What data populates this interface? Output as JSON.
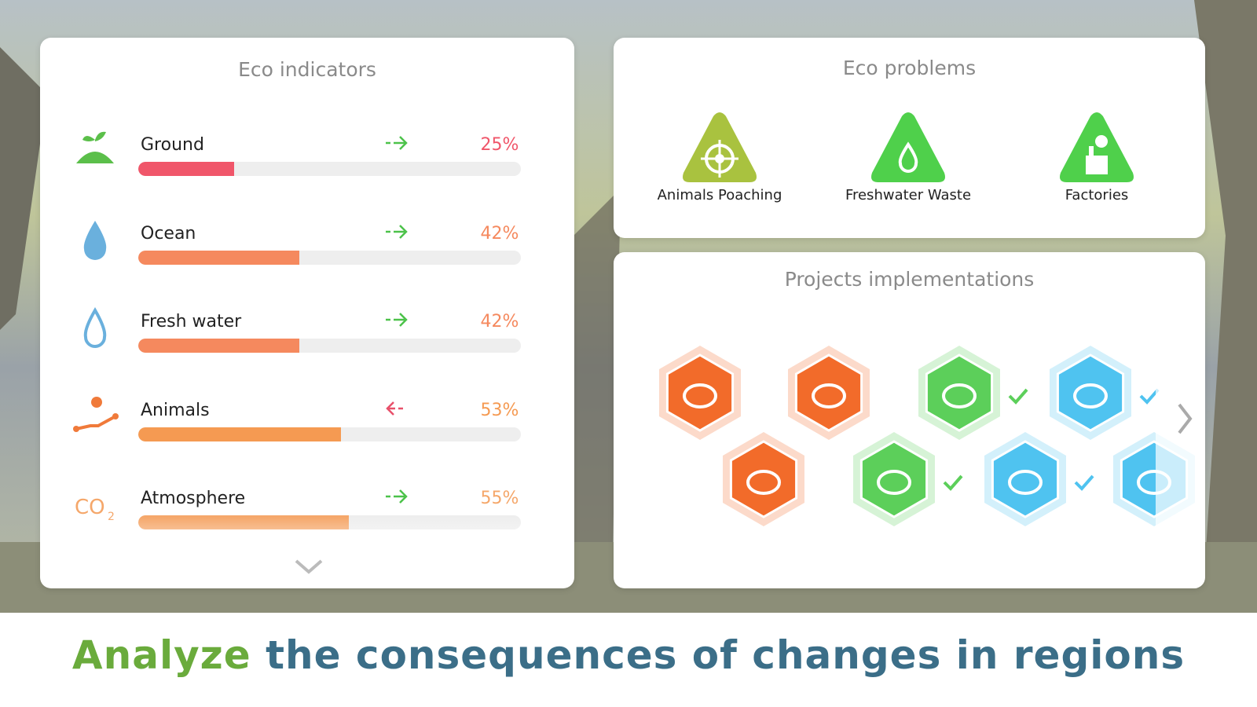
{
  "indicators": {
    "title": "Eco indicators",
    "items": [
      {
        "name": "Ground",
        "value": 25,
        "value_label": "25%",
        "trend": "increase",
        "color": "#f0566a"
      },
      {
        "name": "Ocean",
        "value": 42,
        "value_label": "42%",
        "trend": "increase",
        "color": "#f5895e"
      },
      {
        "name": "Fresh water",
        "value": 42,
        "value_label": "42%",
        "trend": "increase",
        "color": "#f5895e"
      },
      {
        "name": "Animals",
        "value": 53,
        "value_label": "53%",
        "trend": "decrease",
        "color": "#f59a52"
      },
      {
        "name": "Atmosphere",
        "value": 55,
        "value_label": "55%",
        "trend": "increase",
        "color": "#f5a76a"
      }
    ]
  },
  "problems": {
    "title": "Eco problems",
    "items": [
      {
        "name": "Animals Poaching",
        "color": "#a9c23f"
      },
      {
        "name": "Freshwater Waste",
        "color": "#4fd04b"
      },
      {
        "name": "Factories",
        "color": "#4fd04b"
      }
    ]
  },
  "projects": {
    "title": "Projects implementations"
  },
  "headline": {
    "highlight": "Analyze",
    "rest": "the consequences of changes in regions"
  }
}
